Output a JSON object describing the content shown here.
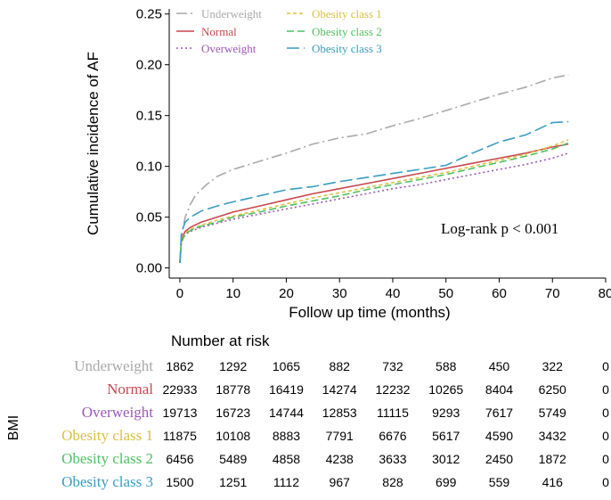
{
  "chart_data": {
    "type": "line",
    "xlabel": "Follow up time (months)",
    "ylabel": "Cumulative incidence of AF",
    "xlim": [
      -2,
      80
    ],
    "ylim": [
      -0.01,
      0.255
    ],
    "x_ticks": [
      0,
      10,
      20,
      30,
      40,
      50,
      60,
      70,
      80
    ],
    "y_ticks": [
      0.0,
      0.05,
      0.1,
      0.15,
      0.2,
      0.25
    ],
    "legend_position": "top-left",
    "annotation": "Log-rank p < 0.001",
    "series": [
      {
        "name": "Underweight",
        "color": "#a9a9a9",
        "dash": "12,4,2,4",
        "points": [
          [
            0,
            0.005
          ],
          [
            0.3,
            0.03
          ],
          [
            1,
            0.05
          ],
          [
            2,
            0.063
          ],
          [
            3,
            0.072
          ],
          [
            5,
            0.082
          ],
          [
            7,
            0.09
          ],
          [
            10,
            0.097
          ],
          [
            15,
            0.105
          ],
          [
            20,
            0.113
          ],
          [
            25,
            0.122
          ],
          [
            30,
            0.128
          ],
          [
            35,
            0.132
          ],
          [
            40,
            0.14
          ],
          [
            45,
            0.147
          ],
          [
            50,
            0.155
          ],
          [
            55,
            0.163
          ],
          [
            60,
            0.171
          ],
          [
            65,
            0.178
          ],
          [
            70,
            0.187
          ],
          [
            73,
            0.19
          ]
        ]
      },
      {
        "name": "Normal",
        "color": "#c8474f",
        "dash": "",
        "points": [
          [
            0,
            0.005
          ],
          [
            0.3,
            0.028
          ],
          [
            1,
            0.036
          ],
          [
            2,
            0.04
          ],
          [
            4,
            0.045
          ],
          [
            7,
            0.05
          ],
          [
            10,
            0.055
          ],
          [
            15,
            0.061
          ],
          [
            20,
            0.067
          ],
          [
            25,
            0.073
          ],
          [
            30,
            0.078
          ],
          [
            35,
            0.083
          ],
          [
            40,
            0.088
          ],
          [
            45,
            0.093
          ],
          [
            50,
            0.098
          ],
          [
            55,
            0.103
          ],
          [
            60,
            0.108
          ],
          [
            65,
            0.113
          ],
          [
            70,
            0.119
          ],
          [
            73,
            0.122
          ]
        ]
      },
      {
        "name": "Overweight",
        "color": "#9b59b6",
        "dash": "2,3",
        "points": [
          [
            0,
            0.005
          ],
          [
            0.3,
            0.025
          ],
          [
            1,
            0.033
          ],
          [
            2,
            0.036
          ],
          [
            4,
            0.04
          ],
          [
            7,
            0.044
          ],
          [
            10,
            0.048
          ],
          [
            15,
            0.053
          ],
          [
            20,
            0.058
          ],
          [
            25,
            0.063
          ],
          [
            30,
            0.068
          ],
          [
            35,
            0.073
          ],
          [
            40,
            0.078
          ],
          [
            45,
            0.082
          ],
          [
            50,
            0.087
          ],
          [
            55,
            0.092
          ],
          [
            60,
            0.097
          ],
          [
            65,
            0.102
          ],
          [
            70,
            0.108
          ],
          [
            73,
            0.113
          ]
        ]
      },
      {
        "name": "Obesity class 1",
        "color": "#d9c140",
        "dash": "4,3",
        "points": [
          [
            0,
            0.005
          ],
          [
            0.3,
            0.027
          ],
          [
            1,
            0.034
          ],
          [
            2,
            0.038
          ],
          [
            4,
            0.042
          ],
          [
            7,
            0.047
          ],
          [
            10,
            0.051
          ],
          [
            15,
            0.057
          ],
          [
            20,
            0.063
          ],
          [
            25,
            0.069
          ],
          [
            30,
            0.074
          ],
          [
            35,
            0.079
          ],
          [
            40,
            0.084
          ],
          [
            45,
            0.089
          ],
          [
            50,
            0.094
          ],
          [
            55,
            0.1
          ],
          [
            60,
            0.106
          ],
          [
            65,
            0.112
          ],
          [
            70,
            0.12
          ],
          [
            73,
            0.126
          ]
        ]
      },
      {
        "name": "Obesity class 2",
        "color": "#4fbf63",
        "dash": "8,4",
        "points": [
          [
            0,
            0.005
          ],
          [
            0.3,
            0.026
          ],
          [
            1,
            0.033
          ],
          [
            2,
            0.037
          ],
          [
            4,
            0.041
          ],
          [
            7,
            0.045
          ],
          [
            10,
            0.05
          ],
          [
            15,
            0.055
          ],
          [
            20,
            0.061
          ],
          [
            25,
            0.066
          ],
          [
            30,
            0.071
          ],
          [
            35,
            0.077
          ],
          [
            40,
            0.082
          ],
          [
            45,
            0.087
          ],
          [
            50,
            0.092
          ],
          [
            55,
            0.098
          ],
          [
            60,
            0.104
          ],
          [
            65,
            0.11
          ],
          [
            70,
            0.117
          ],
          [
            73,
            0.123
          ]
        ]
      },
      {
        "name": "Obesity class 3",
        "color": "#3a9cc0",
        "dash": "14,5",
        "points": [
          [
            0,
            0.005
          ],
          [
            0.3,
            0.035
          ],
          [
            1,
            0.045
          ],
          [
            2,
            0.05
          ],
          [
            4,
            0.056
          ],
          [
            7,
            0.061
          ],
          [
            10,
            0.065
          ],
          [
            15,
            0.071
          ],
          [
            20,
            0.077
          ],
          [
            25,
            0.08
          ],
          [
            30,
            0.085
          ],
          [
            35,
            0.089
          ],
          [
            40,
            0.093
          ],
          [
            45,
            0.097
          ],
          [
            50,
            0.101
          ],
          [
            55,
            0.113
          ],
          [
            60,
            0.124
          ],
          [
            65,
            0.131
          ],
          [
            70,
            0.143
          ],
          [
            73,
            0.144
          ]
        ]
      }
    ]
  },
  "risk_table": {
    "title": "Number at risk",
    "group_label": "BMI",
    "times": [
      0,
      10,
      20,
      30,
      40,
      50,
      60,
      70,
      80
    ],
    "rows": [
      {
        "name": "Underweight",
        "color": "#a9a9a9",
        "values": [
          "1862",
          "1292",
          "1065",
          "882",
          "732",
          "588",
          "450",
          "322",
          "0"
        ]
      },
      {
        "name": "Normal",
        "color": "#c8474f",
        "values": [
          "22933",
          "18778",
          "16419",
          "14274",
          "12232",
          "10265",
          "8404",
          "6250",
          "0"
        ]
      },
      {
        "name": "Overweight",
        "color": "#9b59b6",
        "values": [
          "19713",
          "16723",
          "14744",
          "12853",
          "11115",
          "9293",
          "7617",
          "5749",
          "0"
        ]
      },
      {
        "name": "Obesity class 1",
        "color": "#d9c140",
        "values": [
          "11875",
          "10108",
          "8883",
          "7791",
          "6676",
          "5617",
          "4590",
          "3432",
          "0"
        ]
      },
      {
        "name": "Obesity class 2",
        "color": "#4fbf63",
        "values": [
          "6456",
          "5489",
          "4858",
          "4238",
          "3633",
          "3012",
          "2450",
          "1872",
          "0"
        ]
      },
      {
        "name": "Obesity class 3",
        "color": "#3a9cc0",
        "values": [
          "1500",
          "1251",
          "1112",
          "967",
          "828",
          "699",
          "559",
          "416",
          "0"
        ]
      }
    ]
  }
}
